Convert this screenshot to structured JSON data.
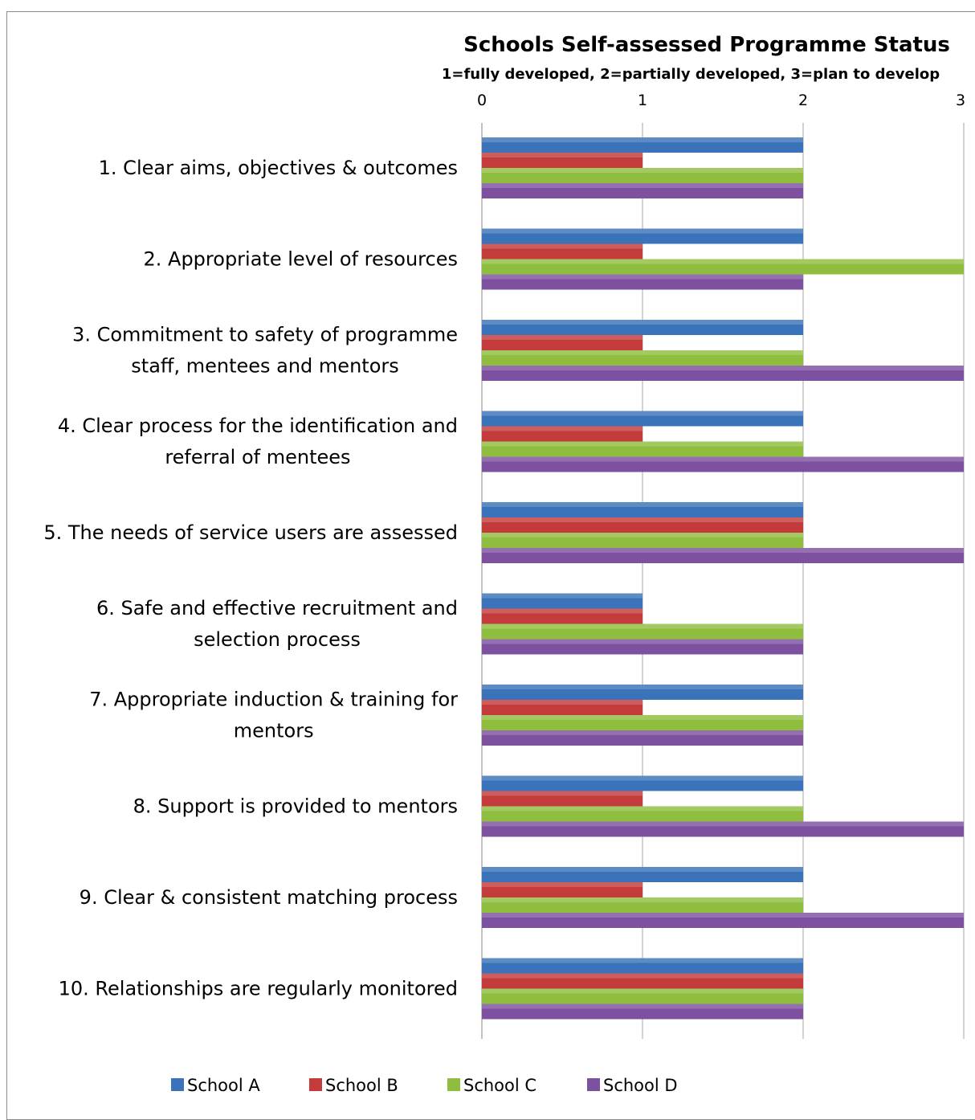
{
  "chart_data": {
    "type": "bar",
    "orientation": "horizontal",
    "title": "Schools Self-assessed Programme Status",
    "subtitle": "1=fully developed, 2=partially developed, 3=plan to develop",
    "xlim": [
      0,
      3
    ],
    "xticks": [
      "0",
      "1",
      "2",
      "3"
    ],
    "grid": true,
    "legend_position": "bottom",
    "categories": [
      [
        "1. Clear aims, objectives & outcomes"
      ],
      [
        "2. Appropriate level of resources"
      ],
      [
        "3. Commitment to  safety of programme",
        "staff, mentees and mentors"
      ],
      [
        "4. Clear process for the identification and",
        "referral of mentees"
      ],
      [
        "5. The needs of service users are assessed"
      ],
      [
        "6. Safe and effective recruitment and",
        "selection process"
      ],
      [
        "7. Appropriate induction & training for",
        "mentors"
      ],
      [
        "8. Support is provided to mentors"
      ],
      [
        "9. Clear & consistent matching process"
      ],
      [
        "10. Relationships are regularly monitored"
      ]
    ],
    "series": [
      {
        "name": "School A",
        "color": "#3a73b9",
        "values": [
          2,
          2,
          2,
          2,
          2,
          1,
          2,
          2,
          2,
          2
        ]
      },
      {
        "name": "School B",
        "color": "#c43b3b",
        "values": [
          1,
          1,
          1,
          1,
          2,
          1,
          1,
          1,
          1,
          2
        ]
      },
      {
        "name": "School C",
        "color": "#8fbe3f",
        "values": [
          2,
          3,
          2,
          2,
          2,
          2,
          2,
          2,
          2,
          2
        ]
      },
      {
        "name": "School D",
        "color": "#7d51a0",
        "values": [
          2,
          2,
          3,
          3,
          3,
          2,
          2,
          3,
          3,
          2
        ]
      }
    ]
  }
}
